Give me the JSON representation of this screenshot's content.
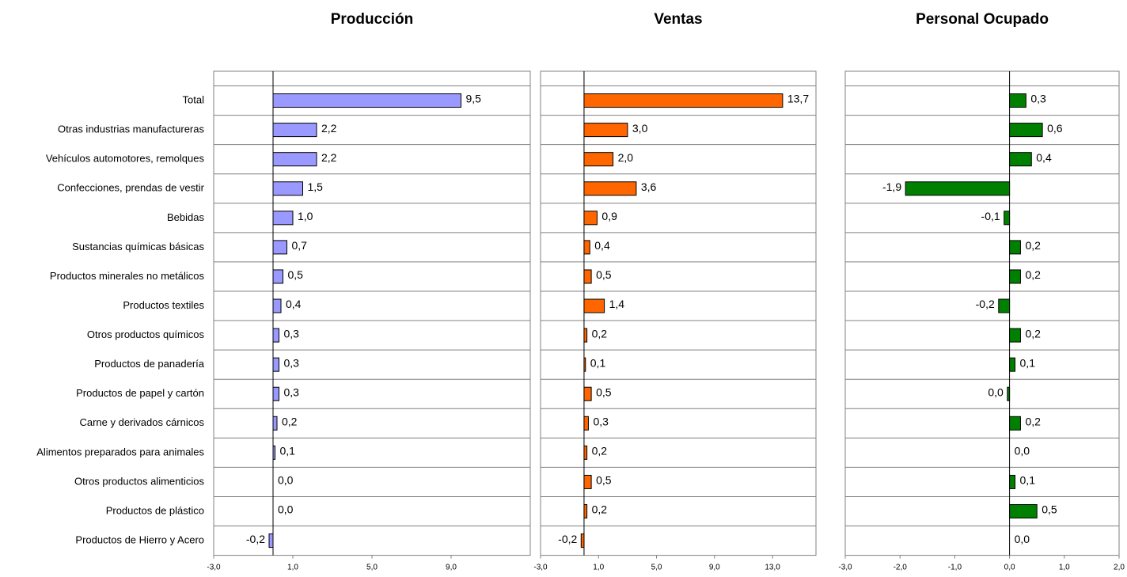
{
  "chart_data": [
    {
      "type": "bar",
      "orientation": "horizontal",
      "title": "Producción",
      "categories": [
        "Total",
        "Otras industrias manufactureras",
        "Vehículos automotores, remolques",
        "Confecciones, prendas de vestir",
        "Bebidas",
        "Sustancias químicas básicas",
        "Productos minerales no metálicos",
        "Productos textiles",
        "Otros productos químicos",
        "Productos de panadería",
        "Productos de papel y cartón",
        "Carne y derivados cárnicos",
        "Alimentos preparados para animales",
        "Otros productos alimenticios",
        "Productos de plástico",
        "Productos de Hierro y Acero"
      ],
      "values": [
        9.5,
        2.2,
        2.2,
        1.5,
        1.0,
        0.7,
        0.5,
        0.4,
        0.3,
        0.3,
        0.3,
        0.2,
        0.1,
        0.0,
        0.0,
        -0.2
      ],
      "value_labels": [
        "9,5",
        "2,2",
        "2,2",
        "1,5",
        "1,0",
        "0,7",
        "0,5",
        "0,4",
        "0,3",
        "0,3",
        "0,3",
        "0,2",
        "0,1",
        "0,0",
        "0,0",
        "-0,2"
      ],
      "color": "#9999ff",
      "xlim": [
        -3,
        13
      ],
      "xticks": [
        {
          "value": -3,
          "label": "-3,0"
        },
        {
          "value": 1,
          "label": "1,0"
        },
        {
          "value": 5,
          "label": "5,0"
        },
        {
          "value": 9,
          "label": "9,0"
        }
      ]
    },
    {
      "type": "bar",
      "orientation": "horizontal",
      "title": "Ventas",
      "values": [
        13.7,
        3.0,
        2.0,
        3.6,
        0.9,
        0.4,
        0.5,
        1.4,
        0.2,
        0.1,
        0.5,
        0.3,
        0.2,
        0.5,
        0.2,
        -0.2
      ],
      "value_labels": [
        "13,7",
        "3,0",
        "2,0",
        "3,6",
        "0,9",
        "0,4",
        "0,5",
        "1,4",
        "0,2",
        "0,1",
        "0,5",
        "0,3",
        "0,2",
        "0,5",
        "0,2",
        "-0,2"
      ],
      "color": "#ff6600",
      "xlim": [
        -3,
        16
      ],
      "xticks": [
        {
          "value": -3,
          "label": "-3,0"
        },
        {
          "value": 1,
          "label": "1,0"
        },
        {
          "value": 5,
          "label": "5,0"
        },
        {
          "value": 9,
          "label": "9,0"
        },
        {
          "value": 13,
          "label": "13,0"
        }
      ]
    },
    {
      "type": "bar",
      "orientation": "horizontal",
      "title": "Personal Ocupado",
      "values": [
        0.3,
        0.6,
        0.4,
        -1.9,
        -0.1,
        0.2,
        0.2,
        -0.2,
        0.2,
        0.1,
        -0.04,
        0.2,
        0.0,
        0.1,
        0.5,
        0.0
      ],
      "value_labels": [
        "0,3",
        "0,6",
        "0,4",
        "-1,9",
        "-0,1",
        "0,2",
        "0,2",
        "-0,2",
        "0,2",
        "0,1",
        "0,0",
        "0,2",
        "0,0",
        "0,1",
        "0,5",
        "0,0"
      ],
      "color": "#008000",
      "xlim": [
        -3,
        2
      ],
      "xticks": [
        {
          "value": -3,
          "label": "-3,0"
        },
        {
          "value": -2,
          "label": "-2,0"
        },
        {
          "value": -1,
          "label": "-1,0"
        },
        {
          "value": 0,
          "label": "0,0"
        },
        {
          "value": 1,
          "label": "1,0"
        },
        {
          "value": 2,
          "label": "2,0"
        }
      ]
    }
  ]
}
